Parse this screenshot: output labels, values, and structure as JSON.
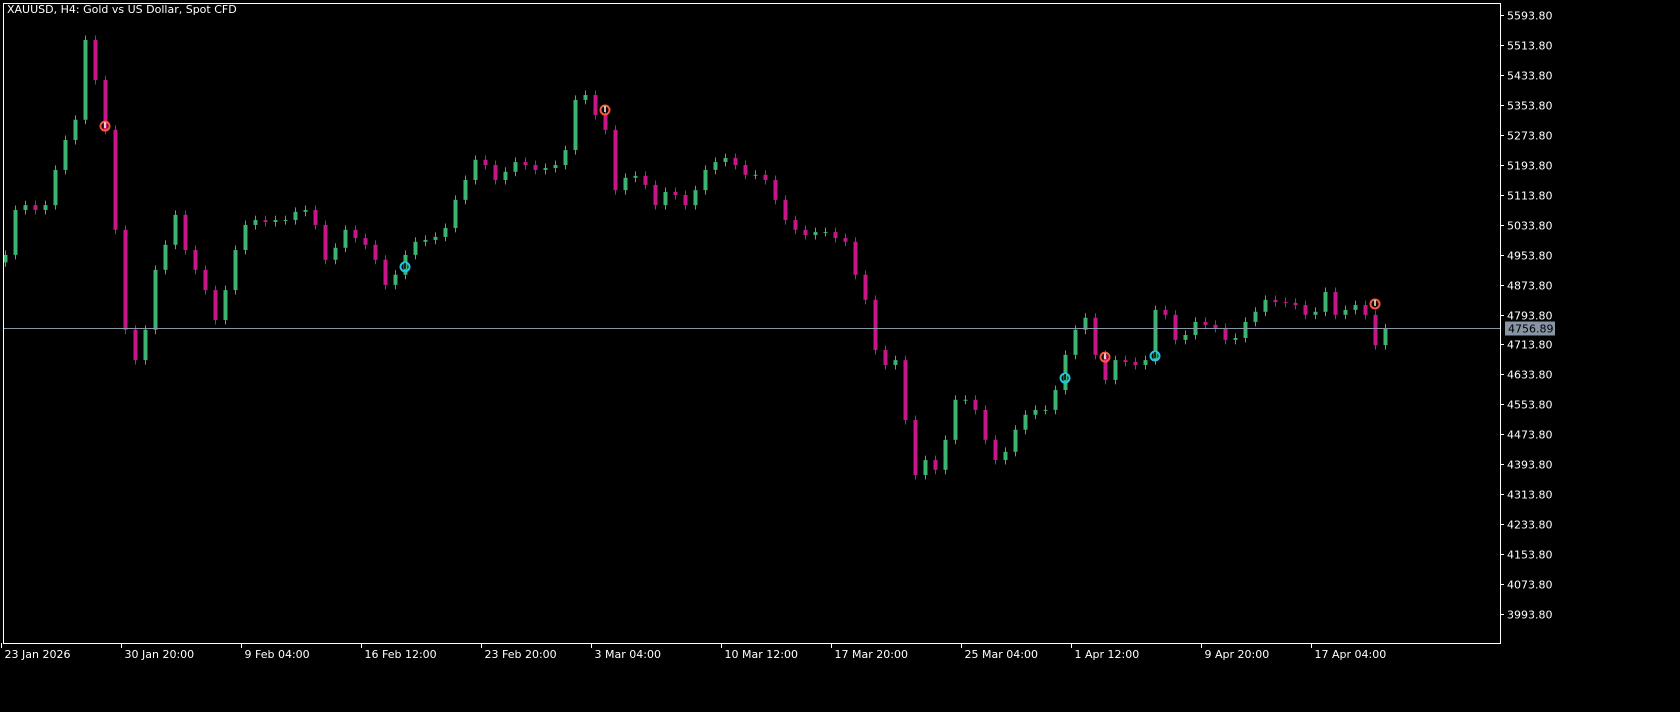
{
  "header": {
    "title": "XAUUSD, H4:  Gold vs US Dollar, Spot CFD"
  },
  "colors": {
    "background": "#000000",
    "bull": "#3cb371",
    "bear": "#c8158a",
    "axis": "#ffffff",
    "bid_line": "#8795a6",
    "sell_marker": "#ff5a36",
    "buy_marker": "#22c8e0"
  },
  "chart_data": {
    "type": "candlestick",
    "symbol": "XAUUSD",
    "timeframe": "H4",
    "ylim": [
      3913.8,
      5633.8
    ],
    "y_ticks": [
      5593.8,
      5513.8,
      5433.8,
      5353.8,
      5273.8,
      5193.8,
      5113.8,
      5033.8,
      4953.8,
      4873.8,
      4793.8,
      4713.8,
      4633.8,
      4553.8,
      4473.8,
      4393.8,
      4313.8,
      4233.8,
      4153.8,
      4073.8,
      3993.8
    ],
    "y_tick_labels": [
      "5593.80",
      "5513.80",
      "5433.80",
      "5353.80",
      "5273.80",
      "5193.80",
      "5113.80",
      "5033.80",
      "4953.80",
      "4873.80",
      "4793.80",
      "4713.80",
      "4633.80",
      "4553.80",
      "4473.80",
      "4393.80",
      "4313.80",
      "4233.80",
      "4153.80",
      "4073.80",
      "3993.80"
    ],
    "current_price": 4756.89,
    "current_price_label": "4756.89",
    "x_ticks": [
      {
        "label": "23 Jan 2026",
        "index": 3
      },
      {
        "label": "30 Jan 20:00",
        "index": 15
      },
      {
        "label": "9 Feb 04:00",
        "index": 27
      },
      {
        "label": "16 Feb 12:00",
        "index": 39
      },
      {
        "label": "23 Feb 20:00",
        "index": 51
      },
      {
        "label": "3 Mar 04:00",
        "index": 62
      },
      {
        "label": "10 Mar 12:00",
        "index": 75
      },
      {
        "label": "17 Mar 20:00",
        "index": 86
      },
      {
        "label": "25 Mar 04:00",
        "index": 99
      },
      {
        "label": "1 Apr 12:00",
        "index": 110
      },
      {
        "label": "9 Apr 20:00",
        "index": 123
      },
      {
        "label": "17 Apr 04:00",
        "index": 134
      }
    ],
    "closes": [
      4953,
      5073,
      5086,
      5073,
      5086,
      5180,
      5260,
      5314,
      5527,
      5420,
      5287,
      5020,
      4753,
      4672,
      4753,
      4913,
      4980,
      5060,
      4966,
      4913,
      4859,
      4779,
      4859,
      4966,
      5033,
      5046,
      5041,
      5046,
      5046,
      5068,
      5073,
      5033,
      4940,
      4972,
      5020,
      4998,
      4980,
      4940,
      4873,
      4900,
      4953,
      4988,
      4993,
      5001,
      5025,
      5100,
      5153,
      5207,
      5193,
      5153,
      5175,
      5201,
      5193,
      5180,
      5185,
      5193,
      5233,
      5367,
      5380,
      5327,
      5287,
      5126,
      5159,
      5164,
      5140,
      5086,
      5121,
      5113,
      5086,
      5126,
      5180,
      5201,
      5212,
      5193,
      5167,
      5167,
      5153,
      5100,
      5046,
      5020,
      5006,
      5014,
      5014,
      4998,
      4988,
      4900,
      4833,
      4699,
      4659,
      4672,
      4512,
      4365,
      4405,
      4379,
      4459,
      4566,
      4566,
      4539,
      4459,
      4405,
      4427,
      4486,
      4526,
      4539,
      4539,
      4592,
      4686,
      4753,
      4785,
      4686,
      4619,
      4672,
      4667,
      4659,
      4672,
      4806,
      4793,
      4726,
      4739,
      4774,
      4766,
      4758,
      4726,
      4731,
      4774,
      4801,
      4833,
      4827,
      4825,
      4819,
      4793,
      4801,
      4854,
      4793,
      4806,
      4819,
      4793,
      4712,
      4757
    ],
    "markers": [
      {
        "type": "sell",
        "index": 10,
        "price": 5297
      },
      {
        "type": "buy",
        "index": 40,
        "price": 4921
      },
      {
        "type": "sell",
        "index": 60,
        "price": 5340
      },
      {
        "type": "buy",
        "index": 106,
        "price": 4624
      },
      {
        "type": "sell",
        "index": 110,
        "price": 4680
      },
      {
        "type": "buy",
        "index": 115,
        "price": 4683
      },
      {
        "type": "sell",
        "index": 137,
        "price": 4822
      }
    ]
  }
}
